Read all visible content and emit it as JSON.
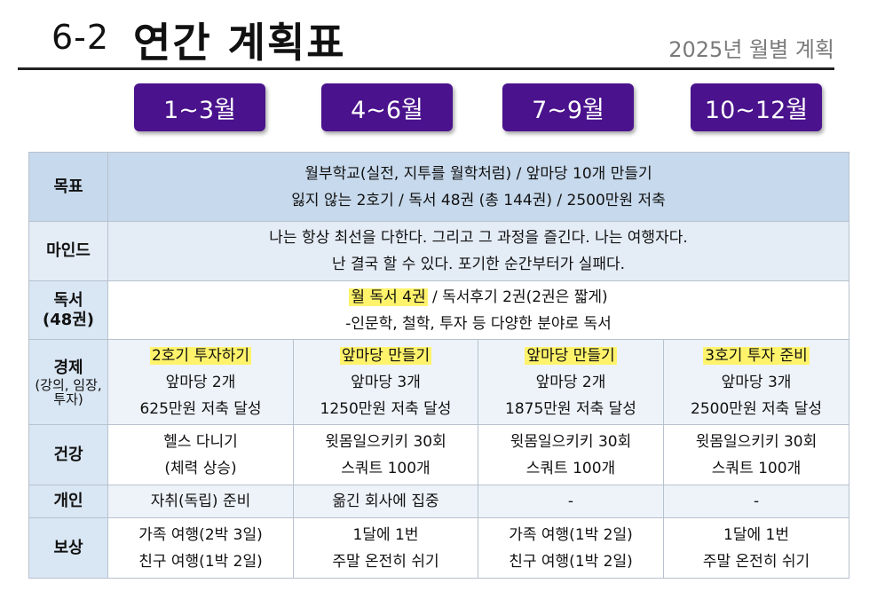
{
  "header": {
    "section_num": "6-2",
    "title": "연간 계획표",
    "subtitle": "2025년 월별 계획"
  },
  "periods": [
    "1~3월",
    "4~6월",
    "7~9월",
    "10~12월"
  ],
  "colors": {
    "period_bg": "#4a128c",
    "highlight": "#fff36b",
    "goal_bg": "#c7d9ec",
    "label_bg": "#d9e6f3"
  },
  "rows": {
    "goal": {
      "label": "목표",
      "lines": [
        "월부학교(실전, 지투를 월학처럼) / 앞마당 10개 만들기",
        "잃지 않는 2호기 / 독서 48권 (총 144권) / 2500만원 저축"
      ]
    },
    "mind": {
      "label": "마인드",
      "lines": [
        "나는 항상 최선을 다한다. 그리고 그 과정을 즐긴다. 나는 여행자다.",
        "난 결국 할 수 있다. 포기한 순간부터가 실패다."
      ]
    },
    "reading": {
      "label": "독서",
      "label_sub": "(48권)",
      "highlight": "월 독서 4권",
      "line1_rest": " / 독서후기 2권(2권은 짧게)",
      "line2": "-인문학, 철학, 투자 등 다양한 분야로 독서"
    },
    "economy": {
      "label": "경제",
      "label_sub": "(강의, 임장, 투자)",
      "cells": [
        {
          "highlight": "2호기 투자하기",
          "line2": "앞마당 2개",
          "line3": "625만원 저축 달성"
        },
        {
          "highlight": "앞마당 만들기",
          "line2": "앞마당 3개",
          "line3": "1250만원 저축 달성"
        },
        {
          "highlight": "앞마당 만들기",
          "line2": "앞마당 2개",
          "line3": "1875만원 저축 달성"
        },
        {
          "highlight": "3호기 투자 준비",
          "line2": "앞마당 3개",
          "line3": "2500만원 저축 달성"
        }
      ]
    },
    "health": {
      "label": "건강",
      "cells": [
        {
          "line1": "헬스 다니기",
          "line2": "(체력 상승)"
        },
        {
          "line1": "윗몸일으키키 30회",
          "line2": "스쿼트 100개"
        },
        {
          "line1": "윗몸일으키키 30회",
          "line2": "스쿼트 100개"
        },
        {
          "line1": "윗몸일으키키 30회",
          "line2": "스쿼트 100개"
        }
      ]
    },
    "personal": {
      "label": "개인",
      "cells": [
        "자취(독립) 준비",
        "옮긴 회사에 집중",
        "-",
        "-"
      ]
    },
    "reward": {
      "label": "보상",
      "cells": [
        {
          "line1": "가족 여행(2박 3일)",
          "line2": "친구 여행(1박 2일)"
        },
        {
          "line1": "1달에 1번",
          "line2": "주말 온전히 쉬기"
        },
        {
          "line1": "가족 여행(1박 2일)",
          "line2": "친구 여행(1박 2일)"
        },
        {
          "line1": "1달에 1번",
          "line2": "주말 온전히 쉬기"
        }
      ]
    }
  }
}
